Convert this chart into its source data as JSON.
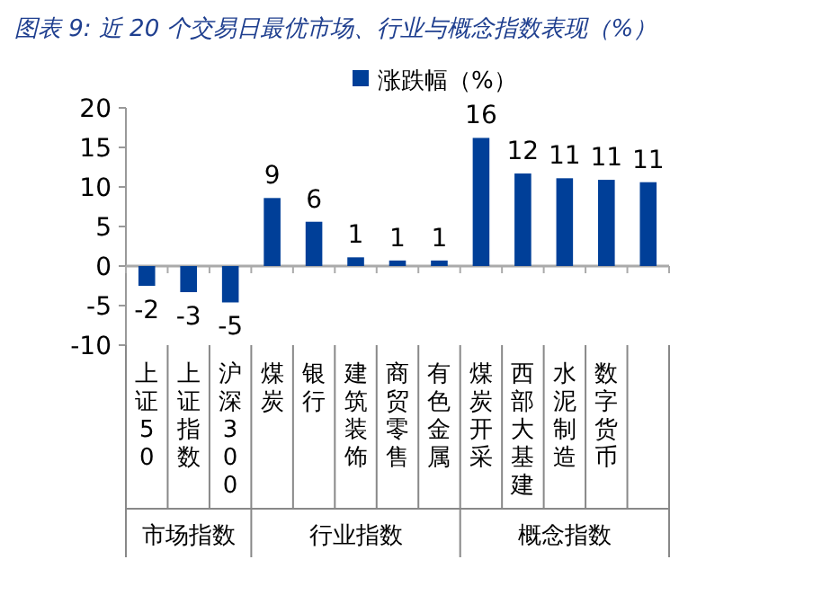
{
  "chart_data": {
    "type": "bar",
    "title": "图表 9: 近 20 个交易日最优市场、行业与概念指数表现（%）",
    "categories": [
      "上证50",
      "上证指数",
      "沪深300",
      "煤炭",
      "银行",
      "建筑装饰",
      "商贸零售",
      "有色金属",
      "煤炭开采",
      "西部大基建",
      "水泥制造",
      "数字货币",
      null
    ],
    "series": [
      {
        "name": "涨跌幅（%）",
        "color": "#003f98",
        "values": [
          -2.5,
          -3.3,
          -4.6,
          8.6,
          5.6,
          1.1,
          0.7,
          0.7,
          16.2,
          11.7,
          11.1,
          10.9,
          10.6
        ],
        "value_labels": [
          "-2",
          "-3",
          "-5",
          "9",
          "6",
          "1",
          "1",
          "1",
          "16",
          "12",
          "11",
          "11",
          "11"
        ]
      }
    ],
    "ylim": [
      -10,
      20
    ],
    "yticks": [
      -10,
      -5,
      0,
      5,
      10,
      15,
      20
    ],
    "legend": "top",
    "annotations": [
      "市场指数",
      "行业指数",
      "概念指数"
    ]
  }
}
